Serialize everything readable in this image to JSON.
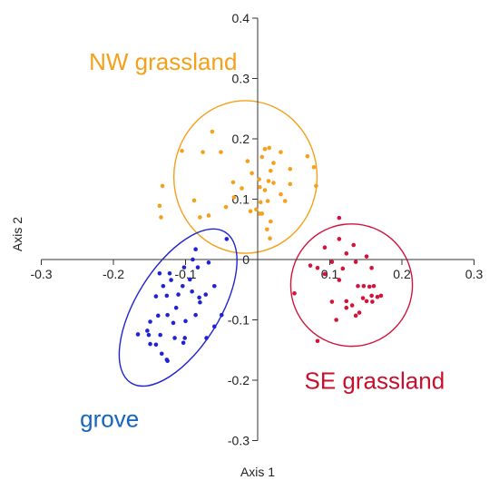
{
  "chart_data": {
    "type": "scatter",
    "title": "",
    "xlabel": "Axis 1",
    "ylabel": "Axis 2",
    "xlim": [
      -0.3,
      0.3
    ],
    "ylim": [
      -0.3,
      0.4
    ],
    "x_ticks": [
      "-0.3",
      "-0.2",
      "-0.1",
      "0",
      "0.1",
      "0.2",
      "0.3"
    ],
    "y_ticks": [
      "0.4",
      "0.3",
      "0.2",
      "0.1",
      "0",
      "-0.1",
      "-0.2",
      "-0.3"
    ],
    "grid": false,
    "axes_through_origin": true,
    "series": [
      {
        "name": "NW grassland",
        "color": "#F5A01A",
        "points": [
          [
            -0.063,
            0.212
          ],
          [
            -0.105,
            0.18
          ],
          [
            -0.076,
            0.178
          ],
          [
            -0.051,
            0.178
          ],
          [
            -0.014,
            0.163
          ],
          [
            0.006,
            0.17
          ],
          [
            0.016,
            0.185
          ],
          [
            0.01,
            0.183
          ],
          [
            -0.008,
            0.143
          ],
          [
            0.022,
            0.16
          ],
          [
            0.045,
            0.125
          ],
          [
            0.018,
            0.147
          ],
          [
            0.022,
            0.127
          ],
          [
            0.015,
            0.13
          ],
          [
            0.002,
            0.133
          ],
          [
            0.003,
            0.12
          ],
          [
            0.032,
            0.178
          ],
          [
            0.038,
            0.097
          ],
          [
            0.014,
            0.097
          ],
          [
            0.032,
            0.108
          ],
          [
            0.045,
            0.15
          ],
          [
            0.069,
            0.171
          ],
          [
            0.078,
            0.153
          ],
          [
            0.081,
            0.122
          ],
          [
            -0.034,
            0.128
          ],
          [
            -0.022,
            0.118
          ],
          [
            -0.044,
            0.087
          ],
          [
            -0.088,
            0.098
          ],
          [
            -0.068,
            0.073
          ],
          [
            -0.08,
            0.07
          ],
          [
            -0.132,
            0.122
          ],
          [
            -0.136,
            0.089
          ],
          [
            -0.134,
            0.07
          ],
          [
            -0.033,
            0.103
          ],
          [
            0.006,
            0.076
          ],
          [
            0.004,
            0.095
          ],
          [
            0.003,
            0.076
          ],
          [
            -0.01,
            0.08
          ],
          [
            0.018,
            0.063
          ],
          [
            0.013,
            0.05
          ],
          [
            -0.002,
            0.083
          ],
          [
            0.01,
            0.115
          ],
          [
            0.017,
            0.035
          ]
        ]
      },
      {
        "name": "SE grassland",
        "color": "#D2143A",
        "points": [
          [
            0.113,
            0.034
          ],
          [
            0.133,
            0.024
          ],
          [
            0.123,
            0.01
          ],
          [
            0.093,
            0.02
          ],
          [
            0.103,
            -0.004
          ],
          [
            0.083,
            -0.014
          ],
          [
            0.093,
            -0.024
          ],
          [
            0.113,
            -0.034
          ],
          [
            0.118,
            -0.015
          ],
          [
            0.136,
            -0.004
          ],
          [
            0.151,
            0.005
          ],
          [
            0.158,
            -0.014
          ],
          [
            0.161,
            -0.044
          ],
          [
            0.155,
            -0.045
          ],
          [
            0.147,
            -0.044
          ],
          [
            0.139,
            -0.044
          ],
          [
            0.171,
            -0.06
          ],
          [
            0.166,
            -0.062
          ],
          [
            0.158,
            -0.06
          ],
          [
            0.146,
            -0.064
          ],
          [
            0.151,
            -0.069
          ],
          [
            0.159,
            -0.07
          ],
          [
            0.123,
            -0.069
          ],
          [
            0.131,
            -0.076
          ],
          [
            0.141,
            -0.088
          ],
          [
            0.123,
            -0.08
          ],
          [
            0.136,
            -0.093
          ],
          [
            0.103,
            -0.07
          ],
          [
            0.109,
            -0.1
          ],
          [
            0.073,
            -0.01
          ],
          [
            0.051,
            -0.056
          ],
          [
            0.083,
            -0.135
          ],
          [
            0.113,
            0.069
          ]
        ]
      },
      {
        "name": "grove",
        "color": "#1E24D2",
        "points": [
          [
            -0.043,
            0.034
          ],
          [
            -0.086,
            0.017
          ],
          [
            -0.09,
            0.0
          ],
          [
            -0.083,
            -0.013
          ],
          [
            -0.068,
            -0.005
          ],
          [
            -0.102,
            -0.013
          ],
          [
            -0.122,
            -0.023
          ],
          [
            -0.136,
            -0.023
          ],
          [
            -0.094,
            -0.033
          ],
          [
            -0.104,
            -0.044
          ],
          [
            -0.12,
            -0.034
          ],
          [
            -0.131,
            -0.044
          ],
          [
            -0.091,
            -0.053
          ],
          [
            -0.11,
            -0.058
          ],
          [
            -0.126,
            -0.06
          ],
          [
            -0.141,
            -0.061
          ],
          [
            -0.081,
            -0.063
          ],
          [
            -0.072,
            -0.058
          ],
          [
            -0.06,
            -0.044
          ],
          [
            -0.05,
            -0.092
          ],
          [
            -0.113,
            -0.08
          ],
          [
            -0.125,
            -0.092
          ],
          [
            -0.138,
            -0.093
          ],
          [
            -0.086,
            -0.092
          ],
          [
            -0.1,
            -0.102
          ],
          [
            -0.117,
            -0.105
          ],
          [
            -0.149,
            -0.103
          ],
          [
            -0.153,
            -0.118
          ],
          [
            -0.151,
            -0.125
          ],
          [
            -0.135,
            -0.125
          ],
          [
            -0.166,
            -0.124
          ],
          [
            -0.115,
            -0.13
          ],
          [
            -0.103,
            -0.138
          ],
          [
            -0.101,
            -0.13
          ],
          [
            -0.141,
            -0.141
          ],
          [
            -0.149,
            -0.14
          ],
          [
            -0.133,
            -0.156
          ],
          [
            -0.126,
            -0.166
          ],
          [
            -0.125,
            -0.168
          ],
          [
            -0.071,
            -0.13
          ],
          [
            -0.06,
            -0.111
          ],
          [
            -0.08,
            -0.071
          ]
        ]
      }
    ],
    "ellipses": [
      {
        "group": "NW grassland",
        "color": "#F5A01A",
        "cx": -0.0169,
        "cy": 0.1368,
        "rx": 0.0993,
        "ry": 0.1264
      },
      {
        "group": "SE grassland",
        "color": "#D2143A",
        "cx": 0.1302,
        "cy": -0.0424,
        "rx": 0.0844,
        "ry": 0.1014
      },
      {
        "group": "grove",
        "color": "#1E24D2",
        "cx": -0.1103,
        "cy": -0.0796,
        "rx": 0.0578,
        "ry": 0.1473,
        "rotation_deg": 32
      }
    ],
    "group_labels": [
      {
        "text": "NW grassland",
        "color": "#F5A01A",
        "x": -0.2338,
        "y": 0.3143
      },
      {
        "text": "SE grassland",
        "color": "#C8102E",
        "x": 0.0648,
        "y": -0.2143
      },
      {
        "text": "grove",
        "color": "#1565C0",
        "x": -0.2464,
        "y": -0.2771
      }
    ]
  }
}
